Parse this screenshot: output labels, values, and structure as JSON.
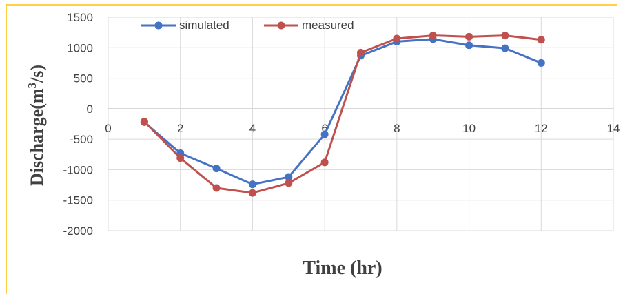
{
  "chart_data": {
    "type": "line",
    "xlabel": "Time (hr)",
    "ylabel_main": "Discharge(m",
    "ylabel_sup": "3",
    "ylabel_tail": "/s)",
    "xlim": [
      0,
      14
    ],
    "ylim": [
      -2000,
      1500
    ],
    "xticks": [
      0,
      2,
      4,
      6,
      8,
      10,
      12,
      14
    ],
    "yticks": [
      1500,
      1000,
      500,
      0,
      -500,
      -1000,
      -1500,
      -2000
    ],
    "grid": true,
    "legend_position": "top-left",
    "series": [
      {
        "name": "simulated",
        "color": "#4472C4",
        "x": [
          1,
          2,
          3,
          4,
          5,
          6,
          7,
          8,
          9,
          10,
          11,
          12
        ],
        "y": [
          -220,
          -730,
          -980,
          -1240,
          -1120,
          -420,
          870,
          1100,
          1140,
          1040,
          990,
          750
        ]
      },
      {
        "name": "measured",
        "color": "#C0504D",
        "x": [
          1,
          2,
          3,
          4,
          5,
          6,
          7,
          8,
          9,
          10,
          11,
          12
        ],
        "y": [
          -210,
          -810,
          -1300,
          -1380,
          -1220,
          -880,
          920,
          1150,
          1200,
          1180,
          1200,
          1130
        ]
      }
    ]
  },
  "frame": {
    "border_color": "#FFC000"
  }
}
